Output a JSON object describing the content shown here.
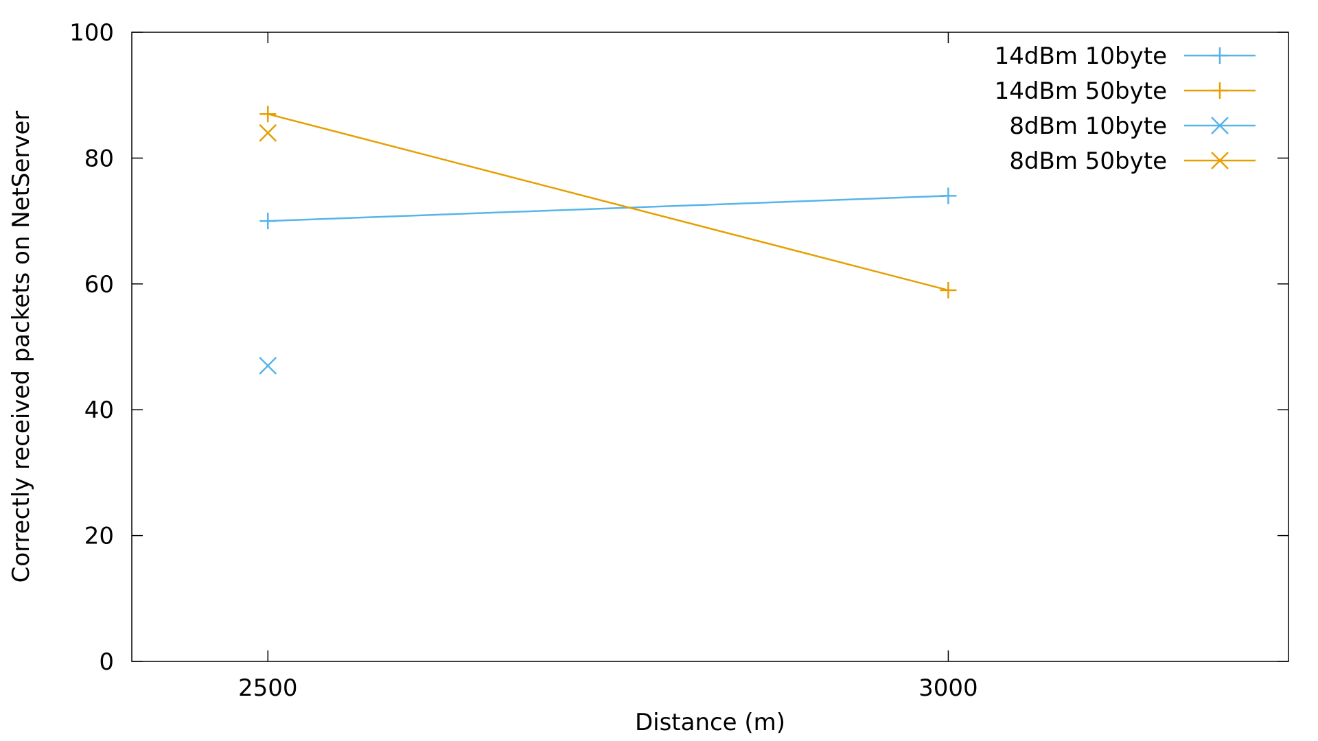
{
  "chart_data": {
    "type": "line",
    "title": "",
    "xlabel": "Distance (m)",
    "ylabel": "Correctly received packets on NetServer",
    "xlim": [
      2400,
      3250
    ],
    "ylim": [
      0,
      100
    ],
    "xticks": [
      2500,
      3000
    ],
    "yticks": [
      0,
      20,
      40,
      60,
      80,
      100
    ],
    "xtick_labels": [
      "2500",
      "3000"
    ],
    "ytick_labels": [
      "0",
      "20",
      "40",
      "60",
      "80",
      "100"
    ],
    "grid": false,
    "legend_position": "top-right",
    "series": [
      {
        "name": "14dBm 10byte",
        "color": "#56B4E9",
        "marker": "plus",
        "line": true,
        "points": [
          {
            "x": 2500,
            "y": 70
          },
          {
            "x": 3000,
            "y": 74
          }
        ]
      },
      {
        "name": "14dBm 50byte",
        "color": "#E69F00",
        "marker": "plus",
        "line": true,
        "points": [
          {
            "x": 2500,
            "y": 87
          },
          {
            "x": 3000,
            "y": 59
          }
        ]
      },
      {
        "name": "8dBm 10byte",
        "color": "#56B4E9",
        "marker": "cross",
        "line": true,
        "points": [
          {
            "x": 2500,
            "y": 47
          }
        ]
      },
      {
        "name": "8dBm 50byte",
        "color": "#E69F00",
        "marker": "cross",
        "line": true,
        "points": [
          {
            "x": 2500,
            "y": 84
          }
        ]
      }
    ]
  }
}
